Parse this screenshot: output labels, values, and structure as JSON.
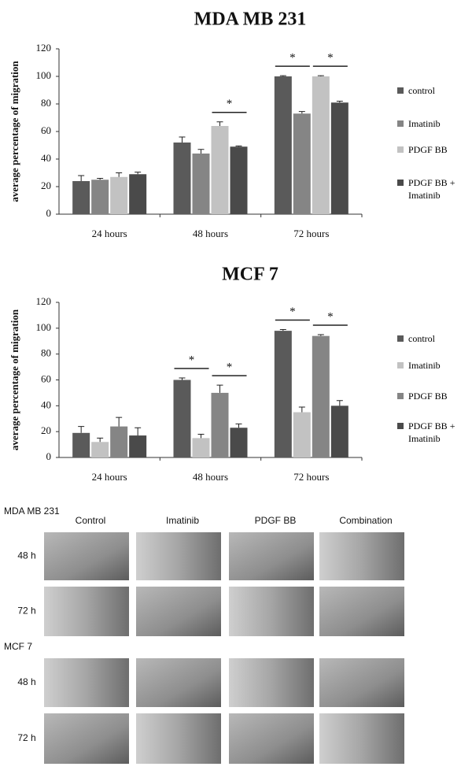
{
  "chart_data": [
    {
      "type": "bar",
      "title": "MDA MB 231",
      "ylabel": "average percentage of migration",
      "categories": [
        "24 hours",
        "48 hours",
        "72 hours"
      ],
      "series": [
        {
          "name": "control",
          "color": "#5a5a5a",
          "values": [
            24,
            52,
            100
          ],
          "errors": [
            4,
            4,
            0.5
          ]
        },
        {
          "name": "Imatinib",
          "color": "#858585",
          "values": [
            25,
            44,
            73
          ],
          "errors": [
            1,
            3,
            1.5
          ]
        },
        {
          "name": "PDGF BB",
          "color": "#c2c2c2",
          "values": [
            27,
            64,
            100
          ],
          "errors": [
            3,
            3,
            0.5
          ]
        },
        {
          "name": "PDGF BB + Imatinib",
          "color": "#4a4a4a",
          "values": [
            29,
            49,
            81
          ],
          "errors": [
            1.5,
            0.5,
            1
          ]
        }
      ],
      "ylim": [
        0,
        120
      ],
      "yticks": [
        0,
        20,
        40,
        60,
        80,
        100,
        120
      ],
      "significance": [
        {
          "category": "48 hours",
          "pair": [
            "PDGF BB",
            "PDGF BB + Imatinib"
          ],
          "label": "*"
        },
        {
          "category": "72 hours",
          "pair": [
            "control",
            "Imatinib"
          ],
          "label": "*"
        },
        {
          "category": "72 hours",
          "pair": [
            "PDGF BB",
            "PDGF BB + Imatinib"
          ],
          "label": "*"
        }
      ]
    },
    {
      "type": "bar",
      "title": "MCF 7",
      "ylabel": "average percentage of migration",
      "categories": [
        "24 hours",
        "48 hours",
        "72 hours"
      ],
      "series": [
        {
          "name": "control",
          "color": "#5a5a5a",
          "values": [
            19,
            60,
            98
          ],
          "errors": [
            5,
            1.5,
            1
          ]
        },
        {
          "name": "Imatinib",
          "color": "#c2c2c2",
          "values": [
            12,
            15,
            35
          ],
          "errors": [
            3,
            3,
            4
          ]
        },
        {
          "name": "PDGF BB",
          "color": "#858585",
          "values": [
            24,
            50,
            94
          ],
          "errors": [
            7,
            6,
            1
          ]
        },
        {
          "name": "PDGF BB + Imatinib",
          "color": "#4a4a4a",
          "values": [
            17,
            23,
            40
          ],
          "errors": [
            6,
            3,
            4
          ]
        }
      ],
      "ylim": [
        0,
        120
      ],
      "yticks": [
        0,
        20,
        40,
        60,
        80,
        100,
        120
      ],
      "significance": [
        {
          "category": "48 hours",
          "pair": [
            "control",
            "Imatinib"
          ],
          "label": "*"
        },
        {
          "category": "48 hours",
          "pair": [
            "PDGF BB",
            "PDGF BB + Imatinib"
          ],
          "label": "*"
        },
        {
          "category": "72 hours",
          "pair": [
            "control",
            "Imatinib"
          ],
          "label": "*"
        },
        {
          "category": "72 hours",
          "pair": [
            "PDGF BB",
            "PDGF BB + Imatinib"
          ],
          "label": "*"
        }
      ]
    }
  ],
  "panels": {
    "columns": [
      "Control",
      "Imatinib",
      "PDGF BB",
      "Combination"
    ],
    "groups": [
      {
        "title": "MDA MB 231",
        "rows": [
          "48 h",
          "72 h"
        ]
      },
      {
        "title": "MCF 7",
        "rows": [
          "48 h",
          "72 h"
        ]
      }
    ]
  }
}
